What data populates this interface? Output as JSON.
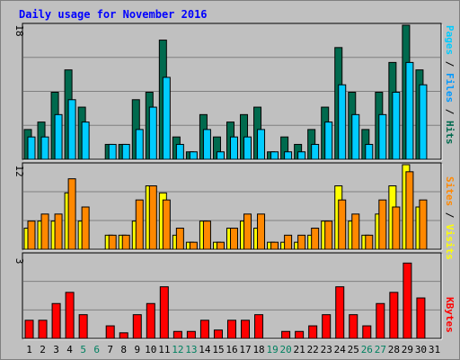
{
  "title": "Daily usage for November 2016",
  "colors": {
    "background": "#c0c0c0",
    "hits": "#006a4e",
    "files": "#00ccff",
    "pages": "#0099ff",
    "visits": "#ffff00",
    "sites": "#ff8800",
    "kbytes": "#ff0000",
    "weekday": "#000000",
    "weekend": "#008060",
    "title": "#0000ff"
  },
  "chart_data": [
    {
      "type": "bar",
      "panel": "hits-files-pages",
      "legend_labels": [
        "Pages",
        "Files",
        "Hits"
      ],
      "ymax_label": "18",
      "ylim": [
        0,
        18
      ],
      "categories": [
        "1",
        "2",
        "3",
        "4",
        "5",
        "6",
        "7",
        "8",
        "9",
        "10",
        "11",
        "12",
        "13",
        "14",
        "15",
        "16",
        "17",
        "18",
        "19",
        "20",
        "21",
        "22",
        "23",
        "24",
        "25",
        "26",
        "27",
        "28",
        "29",
        "30",
        "31"
      ],
      "weekend": [
        5,
        6,
        12,
        13,
        19,
        20,
        26,
        27
      ],
      "series": [
        {
          "name": "Hits",
          "values": [
            4,
            5,
            9,
            12,
            7,
            0,
            2,
            2,
            8,
            9,
            16,
            3,
            1,
            6,
            3,
            5,
            6,
            7,
            1,
            3,
            2,
            4,
            7,
            15,
            9,
            4,
            9,
            13,
            18,
            12,
            0
          ]
        },
        {
          "name": "Files",
          "values": [
            3,
            3,
            6,
            8,
            5,
            0,
            2,
            2,
            4,
            7,
            11,
            2,
            1,
            4,
            1,
            3,
            3,
            4,
            1,
            1,
            1,
            2,
            5,
            10,
            6,
            2,
            6,
            9,
            13,
            10,
            0
          ]
        },
        {
          "name": "Pages",
          "values": [
            0,
            0,
            0,
            0,
            0,
            0,
            0,
            0,
            0,
            0,
            0,
            0,
            0,
            0,
            0,
            0,
            0,
            0,
            0,
            0,
            0,
            0,
            0,
            0,
            0,
            0,
            0,
            0,
            0,
            0,
            0
          ]
        }
      ]
    },
    {
      "type": "bar",
      "panel": "visits-sites",
      "legend_labels": [
        "Sites",
        "Visits"
      ],
      "ymax_label": "12",
      "ylim": [
        0,
        12
      ],
      "categories": [
        "1",
        "2",
        "3",
        "4",
        "5",
        "6",
        "7",
        "8",
        "9",
        "10",
        "11",
        "12",
        "13",
        "14",
        "15",
        "16",
        "17",
        "18",
        "19",
        "20",
        "21",
        "22",
        "23",
        "24",
        "25",
        "26",
        "27",
        "28",
        "29",
        "30",
        "31"
      ],
      "series": [
        {
          "name": "Visits",
          "values": [
            3,
            4,
            4,
            8,
            4,
            0,
            2,
            2,
            4,
            9,
            8,
            2,
            1,
            4,
            1,
            3,
            4,
            3,
            1,
            1,
            1,
            2,
            4,
            9,
            4,
            2,
            5,
            9,
            12,
            6,
            0
          ]
        },
        {
          "name": "Sites",
          "values": [
            4,
            5,
            5,
            10,
            6,
            0,
            2,
            2,
            7,
            9,
            7,
            3,
            1,
            4,
            1,
            3,
            5,
            5,
            1,
            2,
            2,
            3,
            4,
            7,
            5,
            2,
            7,
            6,
            11,
            7,
            0
          ]
        }
      ]
    },
    {
      "type": "bar",
      "panel": "kbytes",
      "legend_labels": [
        "KBytes"
      ],
      "ymax_label": "3",
      "ylim": [
        0,
        3
      ],
      "categories": [
        "1",
        "2",
        "3",
        "4",
        "5",
        "6",
        "7",
        "8",
        "9",
        "10",
        "11",
        "12",
        "13",
        "14",
        "15",
        "16",
        "17",
        "18",
        "19",
        "20",
        "21",
        "22",
        "23",
        "24",
        "25",
        "26",
        "27",
        "28",
        "29",
        "30",
        "31"
      ],
      "series": [
        {
          "name": "KBytes",
          "values": [
            0.65,
            0.65,
            1.25,
            1.65,
            0.85,
            0,
            0.45,
            0.2,
            0.85,
            1.25,
            1.85,
            0.25,
            0.25,
            0.65,
            0.3,
            0.65,
            0.65,
            0.85,
            0,
            0.25,
            0.25,
            0.45,
            0.85,
            1.85,
            0.85,
            0.45,
            1.25,
            1.65,
            2.7,
            1.45,
            0
          ]
        }
      ]
    }
  ]
}
